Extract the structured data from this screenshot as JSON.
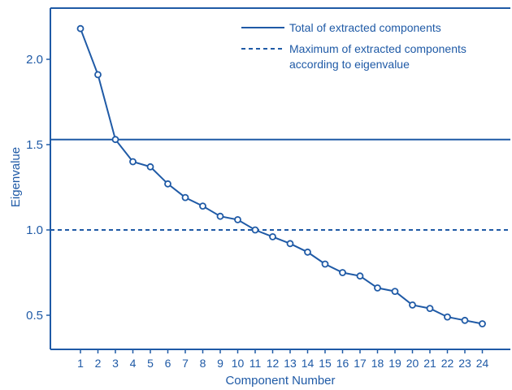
{
  "colors": {
    "primary": "#1f5aa6",
    "background": "#ffffff"
  },
  "chart_data": {
    "type": "line",
    "title": "",
    "xlabel": "Component Number",
    "ylabel": "Eigenvalue",
    "x": [
      1,
      2,
      3,
      4,
      5,
      6,
      7,
      8,
      9,
      10,
      11,
      12,
      13,
      14,
      15,
      16,
      17,
      18,
      19,
      20,
      21,
      22,
      23,
      24
    ],
    "x_tick_labels": [
      "1",
      "2",
      "3",
      "4",
      "5",
      "6",
      "7",
      "8",
      "9",
      "10",
      "11",
      "12",
      "13",
      "14",
      "15",
      "16",
      "17",
      "18",
      "19",
      "20",
      "21",
      "22",
      "23",
      "24"
    ],
    "ylim": [
      0.3,
      2.3
    ],
    "y_ticks": [
      0.5,
      1.0,
      1.5,
      2.0
    ],
    "y_tick_labels": [
      "0.5",
      "1.0",
      "1.5",
      "2.0"
    ],
    "series": [
      {
        "values": [
          2.18,
          1.91,
          1.53,
          1.4,
          1.37,
          1.27,
          1.19,
          1.14,
          1.08,
          1.06,
          1.0,
          0.96,
          0.92,
          0.87,
          0.8,
          0.75,
          0.73,
          0.66,
          0.64,
          0.56,
          0.54,
          0.49,
          0.47,
          0.45
        ],
        "marker": "open-circle"
      }
    ],
    "reference_lines": [
      {
        "name": "Total of extracted components",
        "y": 1.53,
        "style": "solid"
      },
      {
        "name": "Maximum of extracted components according to eigenvalue",
        "y": 1.0,
        "style": "dashed"
      }
    ],
    "legend": {
      "placement": "top-right",
      "entries": [
        {
          "lines": [
            "Total of extracted components"
          ],
          "style": "solid"
        },
        {
          "lines": [
            "Maximum of extracted components",
            "according to eigenvalue"
          ],
          "style": "dashed"
        }
      ]
    },
    "grid": false
  }
}
